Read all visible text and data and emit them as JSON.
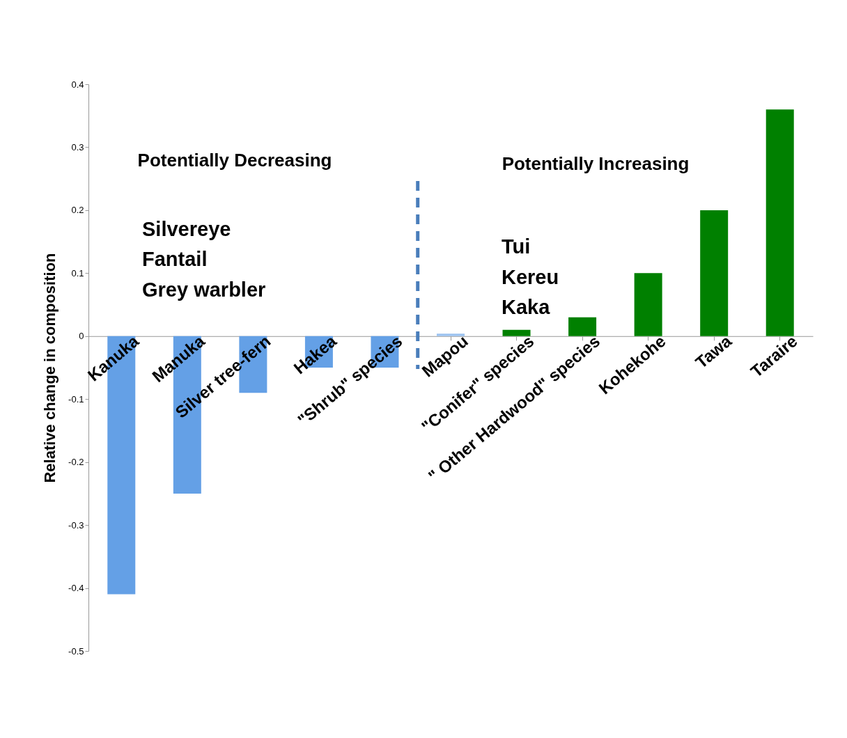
{
  "chart_data": {
    "type": "bar",
    "ylabel": "Relative change in composition",
    "categories": [
      "Kanuka",
      "Manuka",
      "Silver tree-fern",
      "Hakea",
      "\"Shrub\" species",
      "Mapou",
      "\"Conifer\" species",
      "\" Other Hardwood\"  species",
      "Kohekohe",
      "Tawa",
      "Taraire"
    ],
    "values": [
      -0.41,
      -0.25,
      -0.09,
      -0.05,
      -0.05,
      0.004,
      0.01,
      0.03,
      0.1,
      0.2,
      0.36
    ],
    "colors": [
      "#64a0e6",
      "#64a0e6",
      "#64a0e6",
      "#64a0e6",
      "#64a0e6",
      "#9dc3f0",
      "#008000",
      "#008000",
      "#008000",
      "#008000",
      "#008000"
    ],
    "ylim": [
      -0.5,
      0.4
    ],
    "yticks": [
      -0.5,
      -0.4,
      -0.3,
      -0.2,
      -0.1,
      0,
      0.1,
      0.2,
      0.3,
      0.4
    ],
    "grid": false,
    "annotations": [
      "Potentially Decreasing",
      "Silvereye",
      "Fantail",
      "Grey warbler",
      "Potentially Increasing",
      "Tui",
      "Kereu",
      "Kaka"
    ]
  }
}
